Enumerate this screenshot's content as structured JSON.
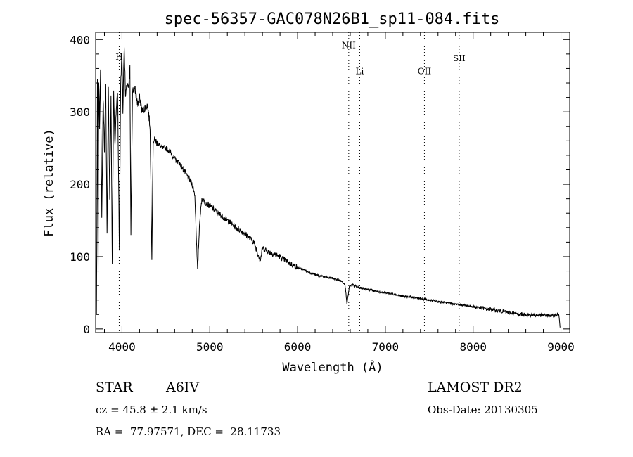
{
  "chart_data": {
    "type": "line",
    "title": "spec-56357-GAC078N26B1_sp11-084.fits",
    "xlabel": "Wavelength (Å)",
    "ylabel": "Flux (relative)",
    "xlim": [
      3700,
      9100
    ],
    "ylim": [
      -5,
      410
    ],
    "xticks": [
      {
        "value": 4000,
        "label": "4000"
      },
      {
        "value": 5000,
        "label": "5000"
      },
      {
        "value": 6000,
        "label": "6000"
      },
      {
        "value": 7000,
        "label": "7000"
      },
      {
        "value": 8000,
        "label": "8000"
      },
      {
        "value": 9000,
        "label": "9000"
      }
    ],
    "yticks": [
      {
        "value": 0,
        "label": "0"
      },
      {
        "value": 100,
        "label": "100"
      },
      {
        "value": 200,
        "label": "200"
      },
      {
        "value": 300,
        "label": "300"
      },
      {
        "value": 400,
        "label": "400"
      }
    ],
    "grid": false,
    "lines": [
      {
        "label": "H",
        "x": 3968,
        "label_y": 372
      },
      {
        "label": "NII",
        "x": 6583,
        "label_y": 388
      },
      {
        "label": "Li",
        "x": 6708,
        "label_y": 352
      },
      {
        "label": "OII",
        "x": 7445,
        "label_y": 352
      },
      {
        "label": "SII",
        "x": 7841,
        "label_y": 370
      }
    ],
    "anchors": [
      [
        3710,
        20
      ],
      [
        3720,
        340
      ],
      [
        3728,
        70
      ],
      [
        3735,
        345
      ],
      [
        3745,
        280
      ],
      [
        3755,
        360
      ],
      [
        3770,
        150
      ],
      [
        3785,
        320
      ],
      [
        3800,
        250
      ],
      [
        3815,
        335
      ],
      [
        3830,
        130
      ],
      [
        3845,
        330
      ],
      [
        3860,
        180
      ],
      [
        3875,
        320
      ],
      [
        3889,
        95
      ],
      [
        3905,
        330
      ],
      [
        3920,
        250
      ],
      [
        3933,
        300
      ],
      [
        3950,
        330
      ],
      [
        3970,
        110
      ],
      [
        3985,
        340
      ],
      [
        4000,
        380
      ],
      [
        4010,
        300
      ],
      [
        4025,
        395
      ],
      [
        4040,
        320
      ],
      [
        4060,
        340
      ],
      [
        4075,
        330
      ],
      [
        4090,
        360
      ],
      [
        4101,
        125
      ],
      [
        4120,
        330
      ],
      [
        4150,
        330
      ],
      [
        4180,
        310
      ],
      [
        4200,
        320
      ],
      [
        4230,
        300
      ],
      [
        4260,
        305
      ],
      [
        4290,
        310
      ],
      [
        4320,
        280
      ],
      [
        4340,
        100
      ],
      [
        4355,
        260
      ],
      [
        4380,
        260
      ],
      [
        4420,
        255
      ],
      [
        4460,
        250
      ],
      [
        4500,
        250
      ],
      [
        4550,
        245
      ],
      [
        4600,
        235
      ],
      [
        4650,
        230
      ],
      [
        4700,
        220
      ],
      [
        4750,
        210
      ],
      [
        4800,
        200
      ],
      [
        4830,
        185
      ],
      [
        4861,
        80
      ],
      [
        4885,
        150
      ],
      [
        4910,
        180
      ],
      [
        4950,
        175
      ],
      [
        5000,
        170
      ],
      [
        5100,
        160
      ],
      [
        5200,
        150
      ],
      [
        5300,
        140
      ],
      [
        5400,
        132
      ],
      [
        5500,
        120
      ],
      [
        5577,
        95
      ],
      [
        5600,
        112
      ],
      [
        5700,
        105
      ],
      [
        5800,
        100
      ],
      [
        5893,
        92
      ],
      [
        5950,
        88
      ],
      [
        6000,
        85
      ],
      [
        6100,
        80
      ],
      [
        6200,
        75
      ],
      [
        6300,
        72
      ],
      [
        6400,
        70
      ],
      [
        6500,
        66
      ],
      [
        6540,
        62
      ],
      [
        6563,
        35
      ],
      [
        6590,
        58
      ],
      [
        6620,
        61
      ],
      [
        6700,
        57
      ],
      [
        6800,
        55
      ],
      [
        6900,
        52
      ],
      [
        7000,
        50
      ],
      [
        7100,
        48
      ],
      [
        7200,
        45
      ],
      [
        7300,
        44
      ],
      [
        7400,
        42
      ],
      [
        7500,
        40
      ],
      [
        7600,
        38
      ],
      [
        7700,
        36
      ],
      [
        7800,
        34
      ],
      [
        7900,
        33
      ],
      [
        8000,
        31
      ],
      [
        8100,
        29
      ],
      [
        8200,
        27
      ],
      [
        8300,
        25
      ],
      [
        8400,
        23
      ],
      [
        8500,
        21
      ],
      [
        8600,
        20
      ],
      [
        8700,
        19
      ],
      [
        8800,
        19
      ],
      [
        8900,
        18
      ],
      [
        8960,
        20
      ],
      [
        8980,
        18
      ],
      [
        8990,
        2
      ]
    ]
  },
  "info": {
    "object_type": "STAR",
    "subclass": "A6IV",
    "survey": "LAMOST DR2",
    "cz": "cz = 45.8 ± 2.1 km/s",
    "obs_date": "Obs-Date: 20130305",
    "coords": "RA =  77.97571, DEC =  28.11733"
  }
}
